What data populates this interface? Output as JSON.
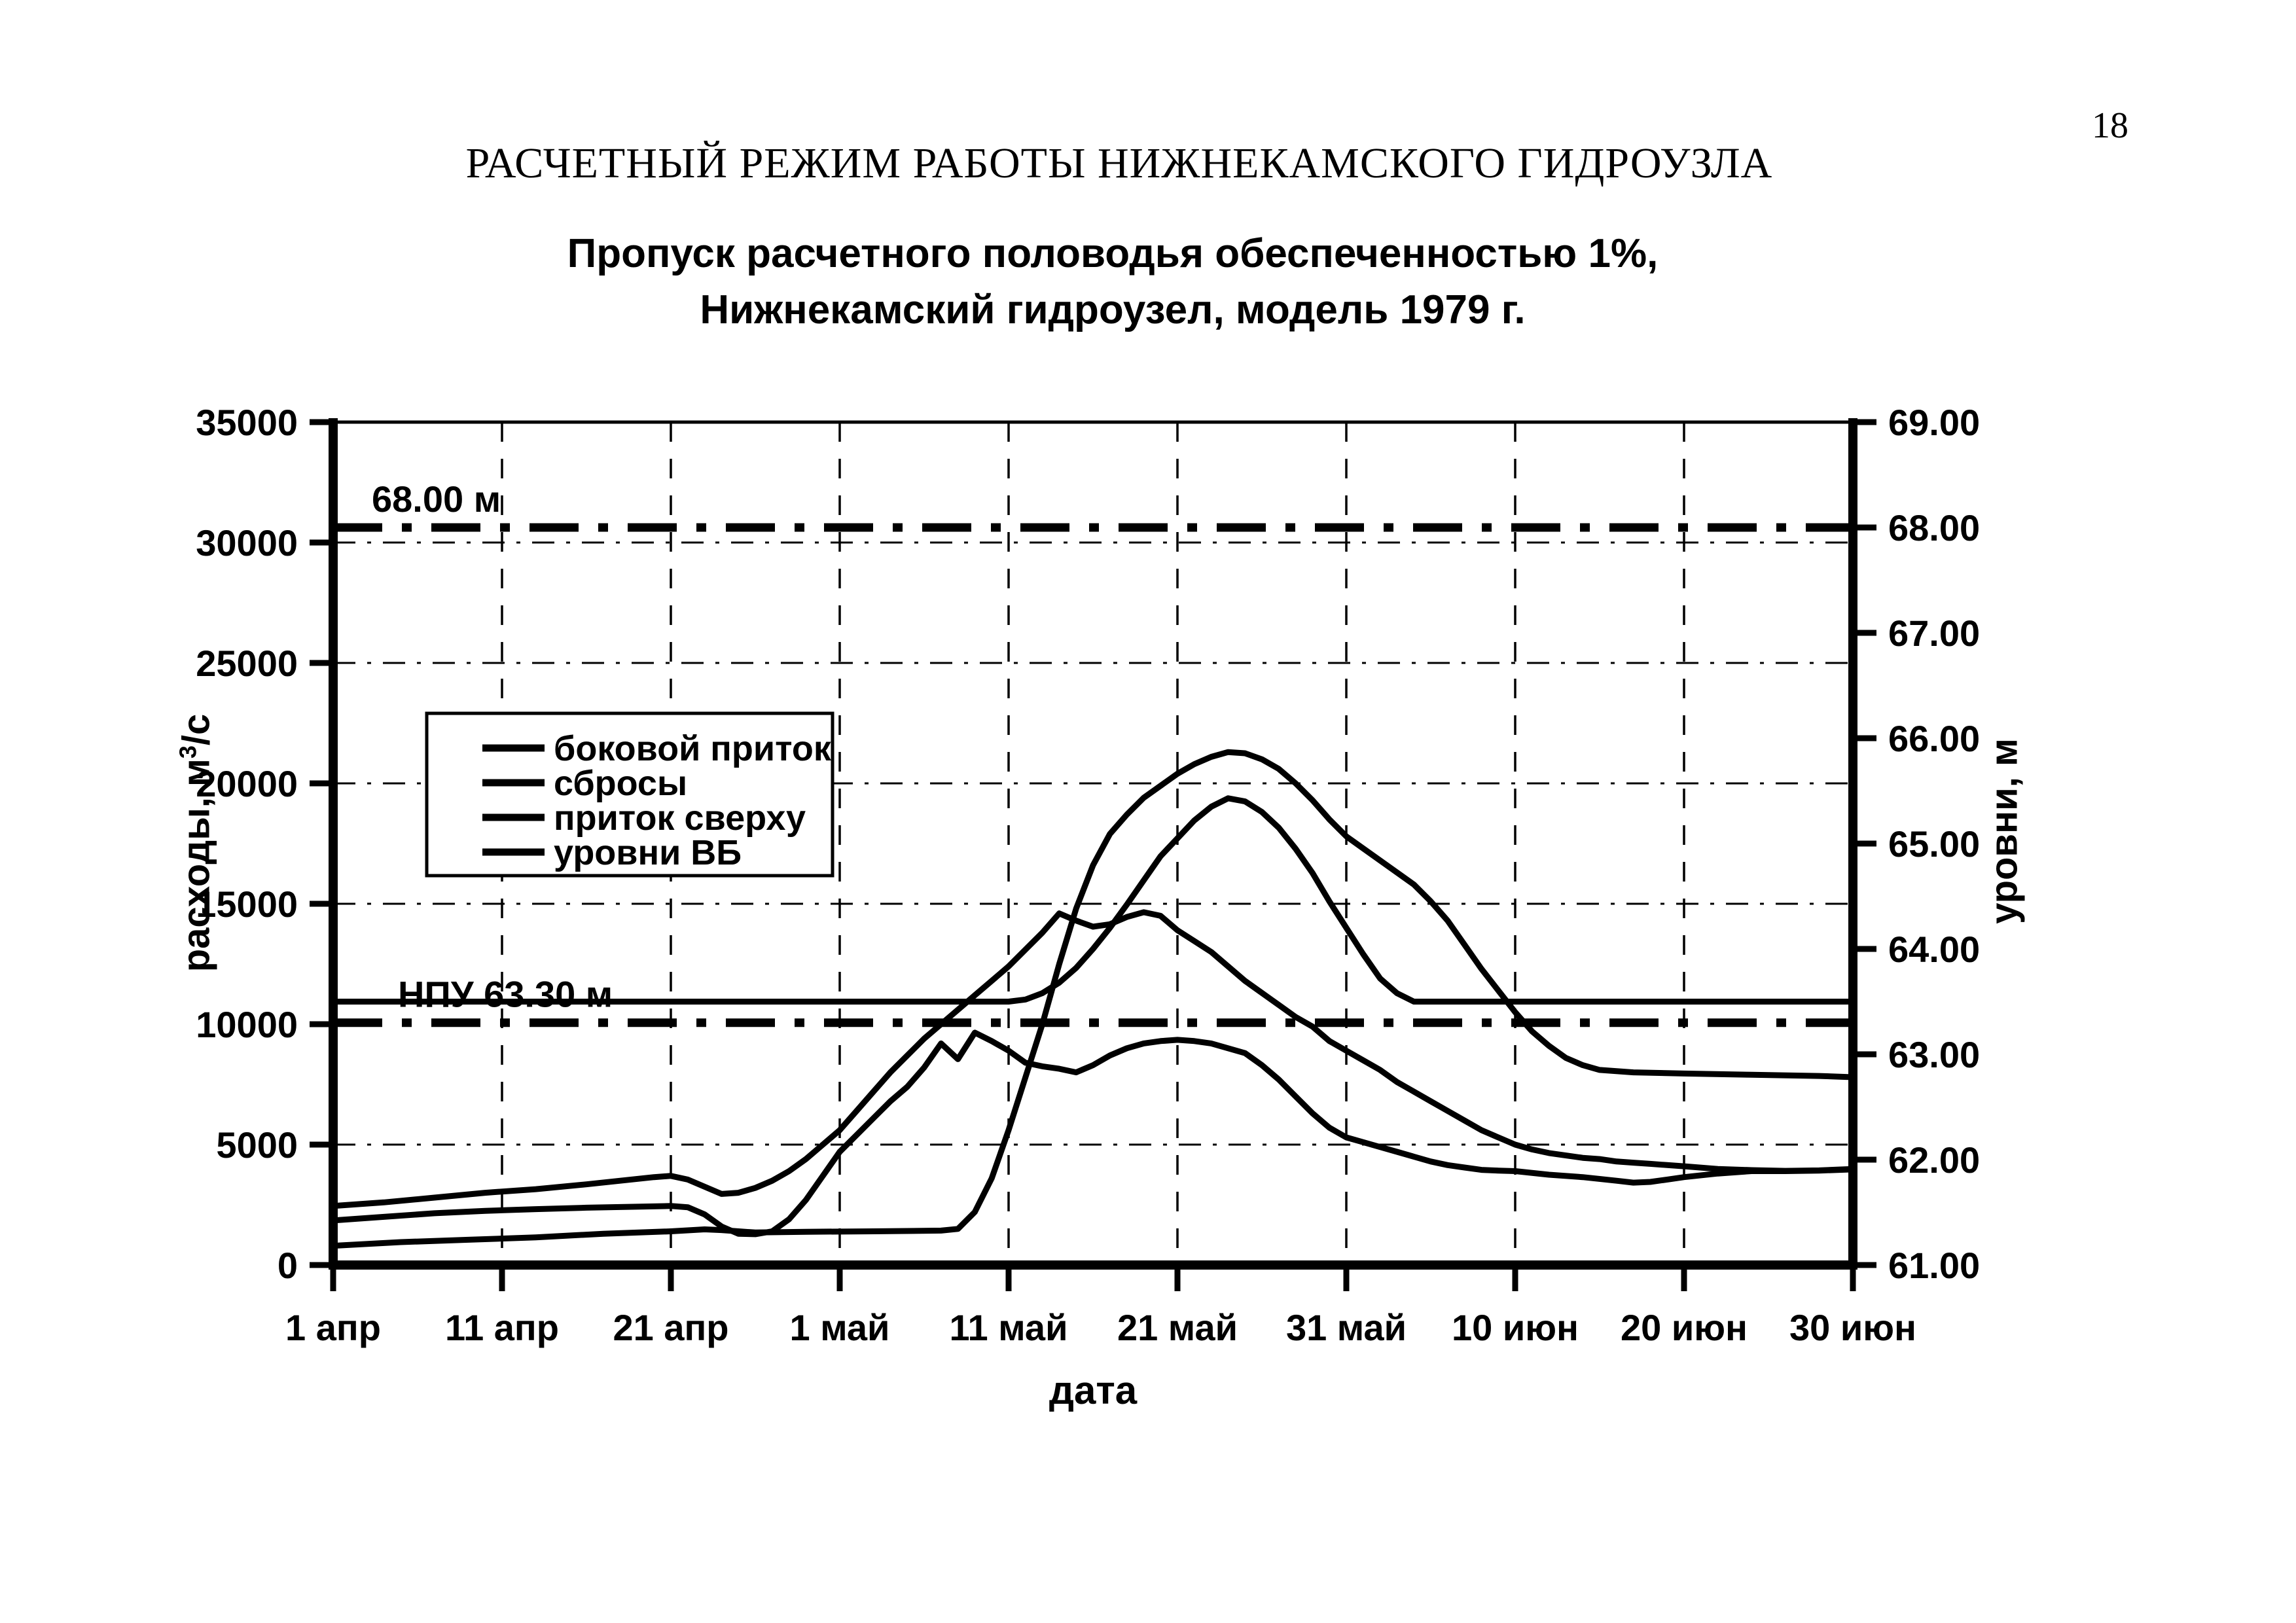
{
  "page": {
    "number": "18"
  },
  "header": {
    "title": "РАСЧЕТНЫЙ РЕЖИМ РАБОТЫ НИЖНЕКАМСКОГО ГИДРОУЗЛА",
    "subtitle_line1": "Пропуск расчетного половодья обеспеченностью 1%,",
    "subtitle_line2": "Нижнекамский гидроузел, модель 1979 г."
  },
  "chart_data": {
    "type": "line",
    "title": "Пропуск расчетного половодья обеспеченностью 1%, Нижнекамский гидроузел, модель 1979 г.",
    "xlabel": "дата",
    "ylabel_left": {
      "base": "расходы, м",
      "sup": "3",
      "rest": "/с"
    },
    "ylabel_right": "уровни, м",
    "grid": "dashed",
    "legend_position": "upper-left-inside",
    "x_axis": {
      "tick_labels": [
        "1 апр",
        "11 апр",
        "21 апр",
        "1 май",
        "11 май",
        "21 май",
        "31 май",
        "10 июн",
        "20 июн",
        "30 июн"
      ],
      "tick_days": [
        0,
        10,
        20,
        30,
        40,
        50,
        60,
        70,
        80,
        90
      ],
      "range_days": [
        0,
        90
      ]
    },
    "y_axis_left": {
      "ticks": [
        0,
        5000,
        10000,
        15000,
        20000,
        25000,
        30000,
        35000
      ],
      "tick_labels": [
        "0",
        "5000",
        "10000",
        "15000",
        "20000",
        "25000",
        "30000",
        "35000"
      ],
      "gridline_values": [
        5000,
        15000,
        20000,
        25000,
        30000
      ],
      "range": [
        0,
        35000
      ],
      "units": "м3/с"
    },
    "y_axis_right": {
      "tick_values": [
        61,
        62,
        63,
        64,
        65,
        66,
        67,
        68,
        69
      ],
      "tick_labels": [
        "61.00",
        "62.00",
        "63.00",
        "64.00",
        "65.00",
        "66.00",
        "67.00",
        "68.00",
        "69.00"
      ],
      "range": [
        61,
        69
      ],
      "units": "м"
    },
    "reference_lines": [
      {
        "label": "68.00 м",
        "level_m": 68.0,
        "style": "dash-dot",
        "color": "#000000"
      },
      {
        "label": "НПУ 63.30 м",
        "level_m": 63.3,
        "style": "dash-dot",
        "color": "#000000"
      }
    ],
    "series": [
      {
        "id": "lateral-inflow",
        "name": "боковой приток",
        "axis": "left",
        "units": "м3/с",
        "color": "#000000",
        "points": [
          [
            0,
            2450
          ],
          [
            3,
            2600
          ],
          [
            6,
            2800
          ],
          [
            9,
            3000
          ],
          [
            12,
            3150
          ],
          [
            15,
            3350
          ],
          [
            17,
            3500
          ],
          [
            19,
            3650
          ],
          [
            20,
            3700
          ],
          [
            21,
            3550
          ],
          [
            22,
            3250
          ],
          [
            23,
            2950
          ],
          [
            24,
            3000
          ],
          [
            25,
            3200
          ],
          [
            26,
            3500
          ],
          [
            27,
            3900
          ],
          [
            28,
            4400
          ],
          [
            29,
            5000
          ],
          [
            30,
            5600
          ],
          [
            31,
            6400
          ],
          [
            32,
            7200
          ],
          [
            33,
            8000
          ],
          [
            34,
            8700
          ],
          [
            35,
            9400
          ],
          [
            36,
            10000
          ],
          [
            37,
            10600
          ],
          [
            38,
            11200
          ],
          [
            39,
            11800
          ],
          [
            40,
            12400
          ],
          [
            41,
            13100
          ],
          [
            42,
            13800
          ],
          [
            43,
            14600
          ],
          [
            44,
            14300
          ],
          [
            45,
            14050
          ],
          [
            46,
            14150
          ],
          [
            47,
            14450
          ],
          [
            48,
            14650
          ],
          [
            49,
            14500
          ],
          [
            50,
            13900
          ],
          [
            51,
            13450
          ],
          [
            52,
            13000
          ],
          [
            53,
            12400
          ],
          [
            54,
            11800
          ],
          [
            55,
            11300
          ],
          [
            56,
            10800
          ],
          [
            57,
            10300
          ],
          [
            58,
            9900
          ],
          [
            59,
            9300
          ],
          [
            60,
            8900
          ],
          [
            61,
            8500
          ],
          [
            62,
            8100
          ],
          [
            63,
            7600
          ],
          [
            64,
            7200
          ],
          [
            65,
            6800
          ],
          [
            66,
            6400
          ],
          [
            67,
            6000
          ],
          [
            68,
            5600
          ],
          [
            69,
            5300
          ],
          [
            70,
            5000
          ],
          [
            71,
            4800
          ],
          [
            72,
            4650
          ],
          [
            73,
            4550
          ],
          [
            74,
            4450
          ],
          [
            75,
            4400
          ],
          [
            76,
            4300
          ],
          [
            77,
            4250
          ],
          [
            78,
            4200
          ],
          [
            79,
            4150
          ],
          [
            80,
            4100
          ],
          [
            82,
            3990
          ],
          [
            84,
            3940
          ],
          [
            86,
            3910
          ],
          [
            88,
            3930
          ],
          [
            90,
            3990
          ]
        ]
      },
      {
        "id": "releases",
        "name": "сбросы",
        "axis": "left",
        "units": "м3/с",
        "color": "#000000",
        "points": [
          [
            0,
            1850
          ],
          [
            3,
            2000
          ],
          [
            6,
            2150
          ],
          [
            9,
            2250
          ],
          [
            12,
            2320
          ],
          [
            15,
            2380
          ],
          [
            18,
            2420
          ],
          [
            20,
            2450
          ],
          [
            21,
            2400
          ],
          [
            22,
            2100
          ],
          [
            23,
            1600
          ],
          [
            24,
            1300
          ],
          [
            25,
            1280
          ],
          [
            26,
            1400
          ],
          [
            27,
            1900
          ],
          [
            28,
            2700
          ],
          [
            29,
            3700
          ],
          [
            30,
            4700
          ],
          [
            31,
            5400
          ],
          [
            32,
            6100
          ],
          [
            33,
            6800
          ],
          [
            34,
            7400
          ],
          [
            35,
            8200
          ],
          [
            36,
            9200
          ],
          [
            37,
            8550
          ],
          [
            38,
            9650
          ],
          [
            39,
            9300
          ],
          [
            40,
            8900
          ],
          [
            41,
            8400
          ],
          [
            42,
            8250
          ],
          [
            43,
            8150
          ],
          [
            44,
            8000
          ],
          [
            45,
            8300
          ],
          [
            46,
            8700
          ],
          [
            47,
            9000
          ],
          [
            48,
            9200
          ],
          [
            49,
            9300
          ],
          [
            50,
            9350
          ],
          [
            51,
            9300
          ],
          [
            52,
            9200
          ],
          [
            53,
            9000
          ],
          [
            54,
            8800
          ],
          [
            55,
            8300
          ],
          [
            56,
            7700
          ],
          [
            57,
            7000
          ],
          [
            58,
            6300
          ],
          [
            59,
            5700
          ],
          [
            60,
            5300
          ],
          [
            61,
            5100
          ],
          [
            62,
            4900
          ],
          [
            63,
            4700
          ],
          [
            64,
            4500
          ],
          [
            65,
            4300
          ],
          [
            66,
            4150
          ],
          [
            67,
            4050
          ],
          [
            68,
            3950
          ],
          [
            69,
            3920
          ],
          [
            70,
            3900
          ],
          [
            72,
            3750
          ],
          [
            74,
            3650
          ],
          [
            76,
            3500
          ],
          [
            77,
            3420
          ],
          [
            78,
            3450
          ],
          [
            79,
            3550
          ],
          [
            80,
            3650
          ],
          [
            82,
            3800
          ],
          [
            84,
            3900
          ],
          [
            86,
            3900
          ],
          [
            88,
            3920
          ],
          [
            90,
            3970
          ]
        ]
      },
      {
        "id": "upstream-inflow",
        "name": "приток сверху",
        "axis": "left",
        "units": "м3/с",
        "color": "#000000",
        "points": [
          [
            0,
            800
          ],
          [
            4,
            950
          ],
          [
            8,
            1050
          ],
          [
            12,
            1150
          ],
          [
            16,
            1300
          ],
          [
            20,
            1400
          ],
          [
            22,
            1480
          ],
          [
            23,
            1450
          ],
          [
            25,
            1350
          ],
          [
            28,
            1380
          ],
          [
            32,
            1400
          ],
          [
            36,
            1430
          ],
          [
            37,
            1500
          ],
          [
            38,
            2200
          ],
          [
            39,
            3600
          ],
          [
            40,
            5600
          ],
          [
            41,
            7800
          ],
          [
            42,
            10000
          ],
          [
            43,
            12500
          ],
          [
            44,
            14800
          ],
          [
            45,
            16600
          ],
          [
            46,
            17900
          ],
          [
            47,
            18700
          ],
          [
            48,
            19400
          ],
          [
            49,
            19900
          ],
          [
            50,
            20400
          ],
          [
            51,
            20800
          ],
          [
            52,
            21100
          ],
          [
            53,
            21300
          ],
          [
            54,
            21250
          ],
          [
            55,
            21000
          ],
          [
            56,
            20600
          ],
          [
            57,
            20000
          ],
          [
            58,
            19300
          ],
          [
            59,
            18500
          ],
          [
            60,
            17800
          ],
          [
            61,
            17300
          ],
          [
            62,
            16800
          ],
          [
            63,
            16300
          ],
          [
            64,
            15800
          ],
          [
            65,
            15100
          ],
          [
            66,
            14300
          ],
          [
            67,
            13300
          ],
          [
            68,
            12300
          ],
          [
            69,
            11400
          ],
          [
            70,
            10500
          ],
          [
            71,
            9700
          ],
          [
            72,
            9100
          ],
          [
            73,
            8600
          ],
          [
            74,
            8300
          ],
          [
            75,
            8100
          ],
          [
            77,
            8000
          ],
          [
            80,
            7950
          ],
          [
            84,
            7900
          ],
          [
            88,
            7850
          ],
          [
            90,
            7800
          ]
        ]
      },
      {
        "id": "upstream-levels",
        "name": "уровни ВБ",
        "axis": "right",
        "units": "м",
        "color": "#000000",
        "points": [
          [
            0,
            63.5
          ],
          [
            10,
            63.5
          ],
          [
            20,
            63.5
          ],
          [
            30,
            63.5
          ],
          [
            35,
            63.5
          ],
          [
            38,
            63.5
          ],
          [
            40,
            63.5
          ],
          [
            41,
            63.52
          ],
          [
            42,
            63.58
          ],
          [
            43,
            63.68
          ],
          [
            44,
            63.82
          ],
          [
            45,
            64.0
          ],
          [
            46,
            64.2
          ],
          [
            47,
            64.42
          ],
          [
            48,
            64.65
          ],
          [
            49,
            64.88
          ],
          [
            50,
            65.05
          ],
          [
            51,
            65.22
          ],
          [
            52,
            65.35
          ],
          [
            53,
            65.43
          ],
          [
            54,
            65.4
          ],
          [
            55,
            65.3
          ],
          [
            56,
            65.15
          ],
          [
            57,
            64.95
          ],
          [
            58,
            64.72
          ],
          [
            59,
            64.45
          ],
          [
            60,
            64.2
          ],
          [
            61,
            63.95
          ],
          [
            62,
            63.72
          ],
          [
            63,
            63.58
          ],
          [
            64,
            63.5
          ],
          [
            66,
            63.5
          ],
          [
            70,
            63.5
          ],
          [
            75,
            63.5
          ],
          [
            80,
            63.5
          ],
          [
            85,
            63.5
          ],
          [
            90,
            63.5
          ]
        ]
      }
    ]
  }
}
